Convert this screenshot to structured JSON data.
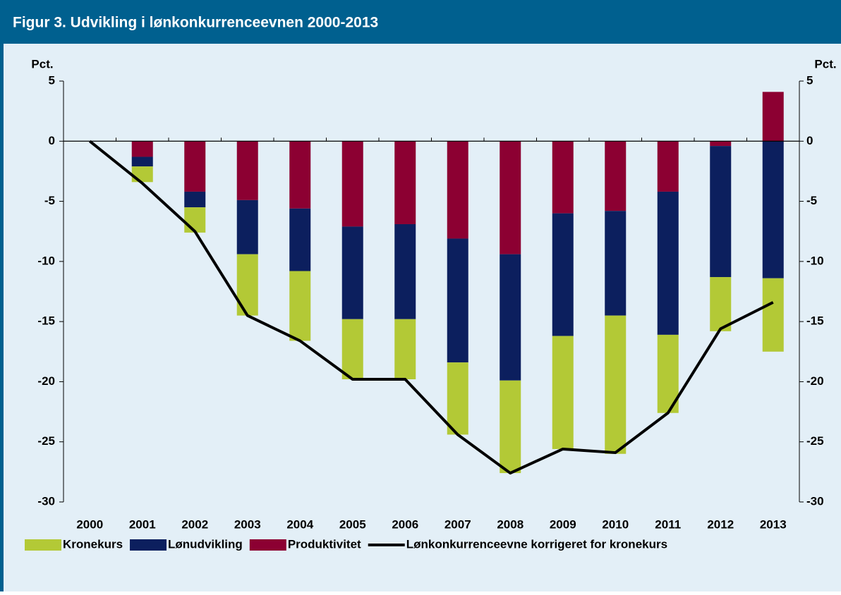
{
  "chart_data": {
    "type": "bar",
    "stacked": true,
    "title": "Figur 3. Udvikling i lønkonkurrenceevnen 2000-2013",
    "ylabel": "Pct.",
    "y2label": "Pct.",
    "categories": [
      "2000",
      "2001",
      "2002",
      "2003",
      "2004",
      "2005",
      "2006",
      "2007",
      "2008",
      "2009",
      "2010",
      "2011",
      "2012",
      "2013"
    ],
    "series": [
      {
        "name": "Kronekurs",
        "type": "bar",
        "color": "#b3c936",
        "values": [
          0,
          -1.3,
          -2.1,
          -5.1,
          -5.8,
          -5.0,
          -5.0,
          -6.0,
          -7.7,
          -9.4,
          -11.5,
          -6.5,
          -4.5,
          -6.1
        ]
      },
      {
        "name": "Lønudvikling",
        "type": "bar",
        "color": "#0c1f5e",
        "values": [
          0,
          -0.8,
          -1.3,
          -4.5,
          -5.2,
          -7.7,
          -7.9,
          -10.3,
          -10.5,
          -10.2,
          -8.7,
          -11.9,
          -10.9,
          -11.4
        ]
      },
      {
        "name": "Produktivitet",
        "type": "bar",
        "color": "#8c0032",
        "values": [
          0,
          -1.3,
          -4.2,
          -4.9,
          -5.6,
          -7.1,
          -6.9,
          -8.1,
          -9.4,
          -6.0,
          -5.8,
          -4.2,
          -0.4,
          4.1
        ]
      },
      {
        "name": "Lønkonkurrenceevne korrigeret for kronekurs",
        "type": "line",
        "color": "#000000",
        "values": [
          0,
          -3.5,
          -7.5,
          -14.5,
          -16.6,
          -19.8,
          -19.8,
          -24.4,
          -27.6,
          -25.6,
          -25.9,
          -22.6,
          -15.6,
          -13.4
        ]
      }
    ],
    "ylim": [
      -30,
      5
    ],
    "yticks": [
      5,
      0,
      -5,
      -10,
      -15,
      -20,
      -25,
      -30
    ],
    "y2lim": [
      -30,
      5
    ],
    "y2ticks": [
      5,
      0,
      -5,
      -10,
      -15,
      -20,
      -25,
      -30
    ]
  }
}
